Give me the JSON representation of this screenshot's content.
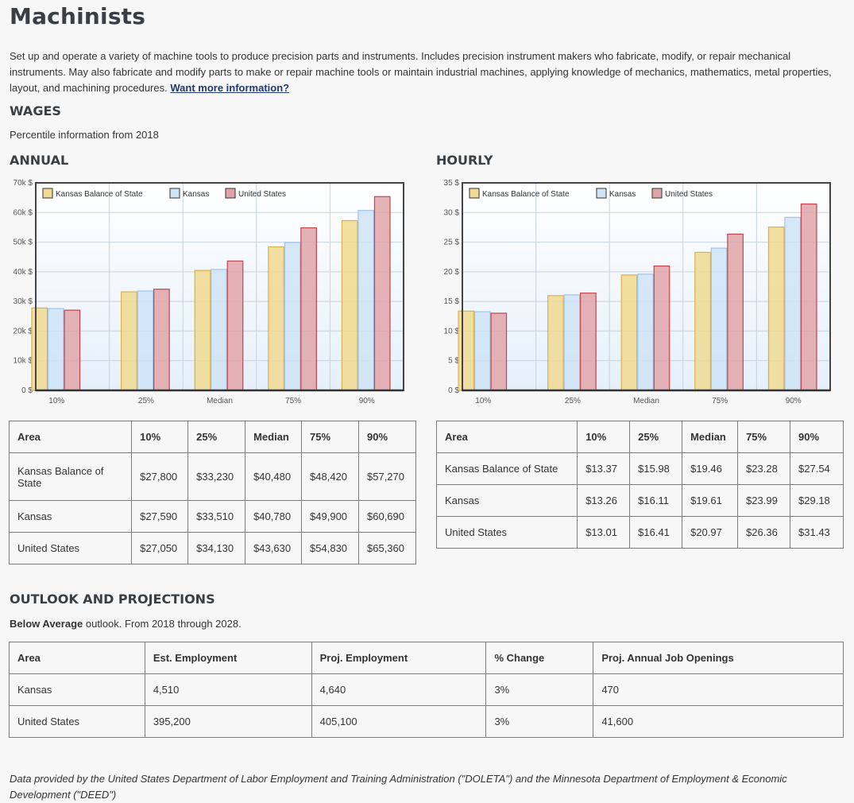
{
  "title": "Machinists",
  "description": "Set up and operate a variety of machine tools to produce precision parts and instruments. Includes precision instrument makers who fabricate, modify, or repair mechanical instruments. May also fabricate and modify parts to make or repair machine tools or maintain industrial machines, applying knowledge of mechanics, mathematics, metal properties, layout, and machining procedures.",
  "more_info_link": "Want more information?",
  "wages": {
    "heading": "WAGES",
    "note": "Percentile information from 2018",
    "annual_heading": "ANNUAL",
    "hourly_heading": "HOURLY",
    "table_headers": [
      "Area",
      "10%",
      "25%",
      "Median",
      "75%",
      "90%"
    ],
    "annual_rows": [
      [
        "Kansas Balance of State",
        "$27,800",
        "$33,230",
        "$40,480",
        "$48,420",
        "$57,270"
      ],
      [
        "Kansas",
        "$27,590",
        "$33,510",
        "$40,780",
        "$49,900",
        "$60,690"
      ],
      [
        "United States",
        "$27,050",
        "$34,130",
        "$43,630",
        "$54,830",
        "$65,360"
      ]
    ],
    "hourly_rows": [
      [
        "Kansas Balance of State",
        "$13.37",
        "$15.98",
        "$19.46",
        "$23.28",
        "$27.54"
      ],
      [
        "Kansas",
        "$13.26",
        "$16.11",
        "$19.61",
        "$23.99",
        "$29.18"
      ],
      [
        "United States",
        "$13.01",
        "$16.41",
        "$20.97",
        "$26.36",
        "$31.43"
      ]
    ]
  },
  "chart_data": [
    {
      "type": "bar",
      "categories": [
        "10%",
        "25%",
        "Median",
        "75%",
        "90%"
      ],
      "series": [
        {
          "name": "Kansas Balance of State",
          "values": [
            27800,
            33230,
            40480,
            48420,
            57270
          ],
          "color": "#f0d990",
          "stroke": "#d8b24a"
        },
        {
          "name": "Kansas",
          "values": [
            27590,
            33510,
            40780,
            49900,
            60690
          ],
          "color": "#cfe4f7",
          "stroke": "#9fc4e8"
        },
        {
          "name": "United States",
          "values": [
            27050,
            34130,
            43630,
            54830,
            65360
          ],
          "color": "#e0a4a8",
          "stroke": "#c0454f"
        }
      ],
      "ylim": [
        0,
        70000
      ],
      "yticks": [
        "0 $",
        "10k $",
        "20k $",
        "30k $",
        "40k $",
        "50k $",
        "60k $",
        "70k $"
      ],
      "legend": "top-left",
      "grid": true
    },
    {
      "type": "bar",
      "categories": [
        "10%",
        "25%",
        "Median",
        "75%",
        "90%"
      ],
      "series": [
        {
          "name": "Kansas Balance of State",
          "values": [
            13.37,
            15.98,
            19.46,
            23.28,
            27.54
          ],
          "color": "#f0d990",
          "stroke": "#d8b24a"
        },
        {
          "name": "Kansas",
          "values": [
            13.26,
            16.11,
            19.61,
            23.99,
            29.18
          ],
          "color": "#cfe4f7",
          "stroke": "#9fc4e8"
        },
        {
          "name": "United States",
          "values": [
            13.01,
            16.41,
            20.97,
            26.36,
            31.43
          ],
          "color": "#e0a4a8",
          "stroke": "#c0454f"
        }
      ],
      "ylim": [
        0,
        35
      ],
      "yticks": [
        "0 $",
        "5 $",
        "10 $",
        "15 $",
        "20 $",
        "25 $",
        "30 $",
        "35 $"
      ],
      "legend": "top-left",
      "grid": true
    }
  ],
  "outlook": {
    "heading": "OUTLOOK AND PROJECTIONS",
    "rating": "Below Average",
    "rating_suffix": " outlook. From 2018 through 2028.",
    "headers": [
      "Area",
      "Est. Employment",
      "Proj. Employment",
      "% Change",
      "Proj. Annual Job Openings"
    ],
    "rows": [
      [
        "Kansas",
        "4,510",
        "4,640",
        "3%",
        "470"
      ],
      [
        "United States",
        "395,200",
        "405,100",
        "3%",
        "41,600"
      ]
    ]
  },
  "footer": "Data provided by the United States Department of Labor Employment and Training Administration (\"DOLETA\") and the Minnesota Department of Employment & Economic Development (\"DEED\")"
}
